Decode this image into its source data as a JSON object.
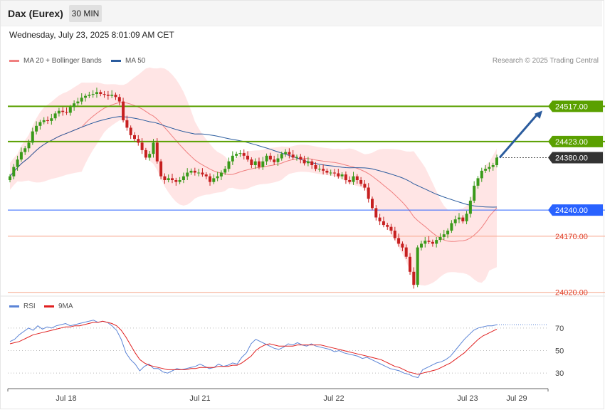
{
  "header": {
    "symbol": "Dax (Eurex)",
    "interval": "30 MIN",
    "datetime": "Wednesday, July 23, 2025 8:01:09 AM CET"
  },
  "legend": {
    "ma20": "MA 20 + Bollinger Bands",
    "ma50": "MA 50",
    "credit": "Research © 2025 Trading Central",
    "rsi": "RSI",
    "rsi_ma": "9MA"
  },
  "colors": {
    "ma20": "#f08080",
    "ma50": "#2b5c9e",
    "band_fill": "#ffe0e0",
    "resistance": "#5aa000",
    "support": "#2962ff",
    "support_line": "#f6a58a",
    "candle_up": "#3a9a1a",
    "candle_down": "#c62020",
    "rsi": "#5b84d6",
    "rsi_ma": "#e02020"
  },
  "chart_data": [
    {
      "type": "candlestick",
      "title": "Dax (Eurex)",
      "timeframe": "30 MIN",
      "ylim": [
        24010,
        24630
      ],
      "x_labels": [
        "Jul 18",
        "Jul 21",
        "Jul 22",
        "Jul 23",
        "Jul 29"
      ],
      "last_price": 24380.0,
      "levels": [
        {
          "value": 24517.0,
          "label": "24517.00",
          "kind": "resistance"
        },
        {
          "value": 24423.0,
          "label": "24423.00",
          "kind": "resistance"
        },
        {
          "value": 24380.0,
          "label": "24380.00",
          "kind": "last"
        },
        {
          "value": 24240.0,
          "label": "24240.00",
          "kind": "pivot"
        },
        {
          "value": 24170.0,
          "label": "24170.00",
          "kind": "support"
        },
        {
          "value": 24020.0,
          "label": "24020.00",
          "kind": "support"
        }
      ],
      "forecast_arrow": {
        "from": 24380,
        "to": 24517
      },
      "closes": [
        24330,
        24355,
        24375,
        24395,
        24405,
        24420,
        24450,
        24465,
        24475,
        24480,
        24478,
        24485,
        24498,
        24505,
        24502,
        24500,
        24515,
        24525,
        24530,
        24540,
        24545,
        24548,
        24550,
        24555,
        24550,
        24548,
        24545,
        24548,
        24542,
        24530,
        24480,
        24460,
        24440,
        24430,
        24420,
        24400,
        24380,
        24390,
        24420,
        24370,
        24330,
        24320,
        24325,
        24320,
        24315,
        24320,
        24330,
        24340,
        24345,
        24340,
        24340,
        24335,
        24330,
        24315,
        24325,
        24330,
        24340,
        24350,
        24370,
        24385,
        24390,
        24392,
        24385,
        24375,
        24360,
        24370,
        24355,
        24370,
        24385,
        24375,
        24368,
        24378,
        24390,
        24395,
        24388,
        24380,
        24382,
        24375,
        24365,
        24370,
        24360,
        24350,
        24350,
        24345,
        24340,
        24340,
        24338,
        24330,
        24335,
        24320,
        24315,
        24330,
        24320,
        24310,
        24300,
        24270,
        24245,
        24220,
        24210,
        24200,
        24195,
        24185,
        24165,
        24150,
        24140,
        24115,
        24075,
        24040,
        24140,
        24150,
        24158,
        24155,
        24150,
        24160,
        24168,
        24175,
        24185,
        24205,
        24215,
        24220,
        24210,
        24230,
        24265,
        24305,
        24325,
        24345,
        24350,
        24355,
        24360,
        24380
      ],
      "rsi": {
        "ylim": [
          20,
          80
        ],
        "ticks": [
          30,
          50,
          70
        ],
        "series": [
          58,
          60,
          64,
          67,
          70,
          68,
          72,
          69,
          71,
          70,
          72,
          73,
          74,
          72,
          73,
          74,
          75,
          76,
          77,
          75,
          76,
          75,
          72,
          68,
          60,
          48,
          42,
          38,
          32,
          36,
          38,
          34,
          34,
          31,
          30,
          32,
          34,
          33,
          34,
          35,
          36,
          38,
          36,
          34,
          35,
          38,
          36,
          37,
          39,
          38,
          44,
          48,
          56,
          60,
          58,
          56,
          54,
          52,
          51,
          53,
          56,
          55,
          57,
          55,
          54,
          56,
          54,
          53,
          52,
          51,
          49,
          50,
          48,
          47,
          46,
          45,
          43,
          44,
          42,
          40,
          38,
          36,
          34,
          33,
          32,
          30,
          29,
          27,
          26,
          33,
          35,
          37,
          39,
          40,
          42,
          45,
          50,
          55,
          60,
          64,
          68,
          70,
          71,
          72,
          72,
          73
        ],
        "ma9": [
          56,
          57,
          58,
          60,
          62,
          64,
          65,
          66,
          67,
          68,
          69,
          70,
          71,
          71,
          72,
          72,
          73,
          74,
          75,
          75,
          76,
          75,
          74,
          72,
          68,
          62,
          55,
          48,
          42,
          39,
          37,
          36,
          35,
          34,
          33,
          33,
          33,
          33,
          33,
          34,
          34,
          35,
          35,
          35,
          35,
          36,
          36,
          36,
          37,
          37,
          39,
          42,
          45,
          50,
          53,
          55,
          56,
          55,
          54,
          54,
          54,
          54,
          55,
          55,
          55,
          55,
          55,
          55,
          54,
          53,
          52,
          51,
          50,
          49,
          48,
          47,
          46,
          45,
          44,
          43,
          42,
          40,
          38,
          36,
          35,
          33,
          31,
          30,
          29,
          30,
          31,
          32,
          33,
          35,
          37,
          39,
          42,
          45,
          48,
          52,
          56,
          60,
          63,
          65,
          67,
          69
        ]
      }
    }
  ]
}
